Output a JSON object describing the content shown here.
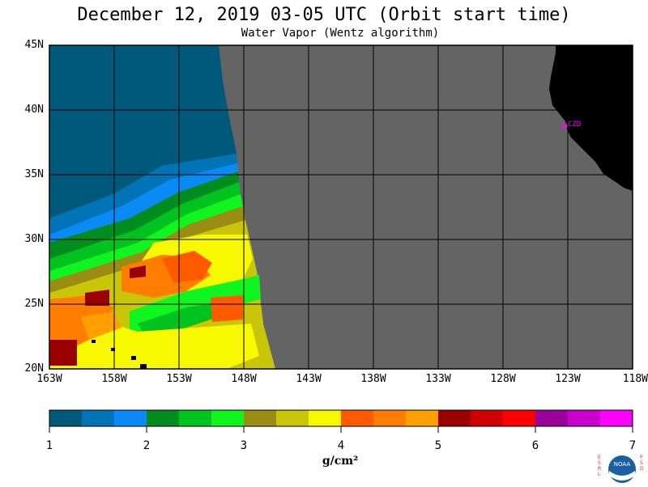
{
  "title": "December 12, 2019  03-05 UTC  (Orbit start time)",
  "subtitle": "Water Vapor (Wentz algorithm)",
  "lat_labels": [
    "45N",
    "40N",
    "35N",
    "30N",
    "25N",
    "20N"
  ],
  "lon_labels": [
    "163W",
    "158W",
    "153W",
    "148W",
    "143W",
    "138W",
    "133W",
    "128W",
    "123W",
    "118W"
  ],
  "station_label": "CZD",
  "colorbar": {
    "labels": [
      "1",
      "2",
      "3",
      "4",
      "5",
      "6",
      "7"
    ],
    "colors": [
      "#00587a",
      "#0074b6",
      "#0a8af5",
      "#008c1e",
      "#00c320",
      "#10f520",
      "#9a8d14",
      "#c9c60a",
      "#f8f800",
      "#ff5a00",
      "#ff7d00",
      "#ff9f00",
      "#9a0000",
      "#d00000",
      "#ff0000",
      "#9a009a",
      "#cc00cc",
      "#ff00ff"
    ],
    "units": "g/cm²"
  },
  "colors": {
    "land": "#000000",
    "no_data": "#646464",
    "grid": "#000000",
    "station": "#ff00ff"
  },
  "logo": {
    "text": "NOAA",
    "left_letters": "ESRL",
    "right_letters": "PSD"
  }
}
